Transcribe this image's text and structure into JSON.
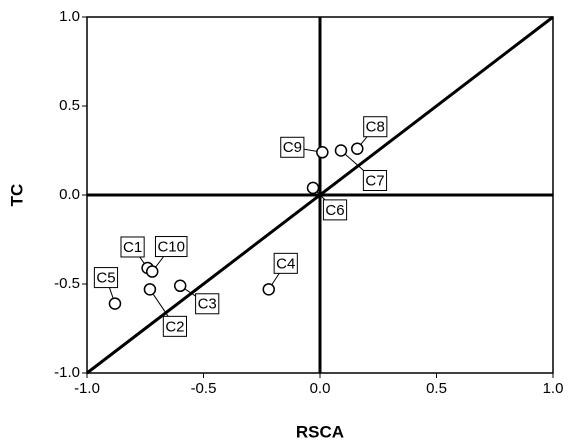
{
  "chart_data": {
    "type": "scatter",
    "x_label": "RSCA",
    "y_label": "TC",
    "labels": [
      "C1",
      "C10",
      "C5",
      "C2",
      "C3",
      "C4",
      "C6",
      "C9",
      "C7",
      "C8"
    ],
    "x": [
      -0.74,
      -0.72,
      -0.88,
      -0.73,
      -0.6,
      -0.22,
      -0.03,
      0.01,
      0.09,
      0.16
    ],
    "values": [
      -0.41,
      -0.43,
      -0.61,
      -0.53,
      -0.51,
      -0.53,
      0.04,
      0.24,
      0.25,
      0.26
    ],
    "xlim": [
      -1.0,
      1.0
    ],
    "ylim": [
      -1.0,
      1.0
    ],
    "xticks": [
      {
        "value": -1.0,
        "label": "-1.0"
      },
      {
        "value": -0.5,
        "label": "-0.5"
      },
      {
        "value": 0.0,
        "label": "0.0"
      },
      {
        "value": 0.5,
        "label": "0.5"
      },
      {
        "value": 1.0,
        "label": "1.0"
      }
    ],
    "yticks": [
      {
        "value": -1.0,
        "label": "-1.0"
      },
      {
        "value": -0.5,
        "label": "-0.5"
      },
      {
        "value": 0.0,
        "label": "0.0"
      },
      {
        "value": 0.5,
        "label": "0.5"
      },
      {
        "value": 1.0,
        "label": "1.0"
      }
    ]
  }
}
